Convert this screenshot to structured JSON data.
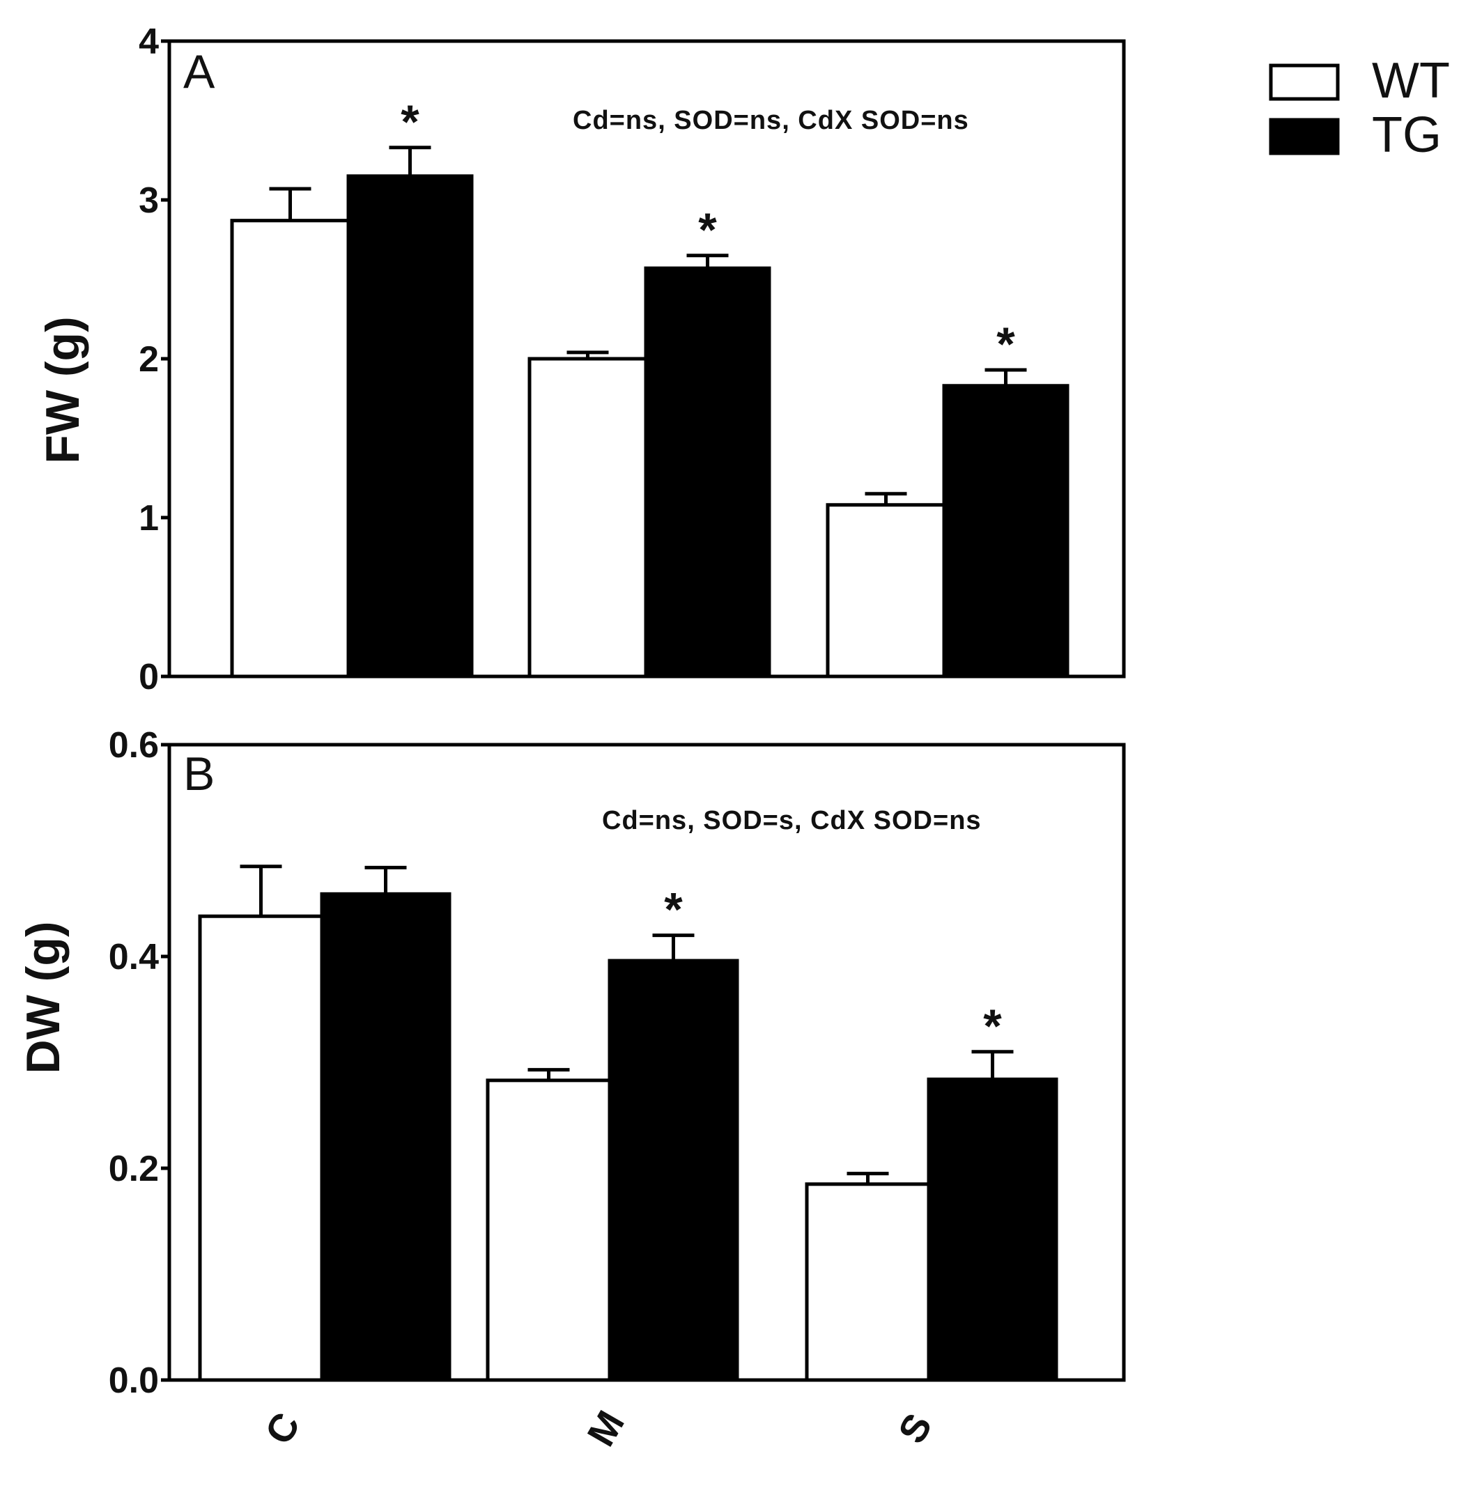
{
  "chart_data": [
    {
      "type": "bar",
      "panel": "A",
      "categories": [
        "C",
        "M",
        "S"
      ],
      "series": [
        {
          "name": "WT",
          "values": [
            2.87,
            2.0,
            1.08
          ],
          "errors": [
            0.2,
            0.04,
            0.07
          ]
        },
        {
          "name": "TG",
          "values": [
            3.15,
            2.57,
            1.83
          ],
          "errors": [
            0.18,
            0.08,
            0.1
          ]
        }
      ],
      "significant": {
        "WT": [
          false,
          false,
          false
        ],
        "TG": [
          true,
          true,
          true
        ]
      },
      "star_label": "*",
      "ylabel": "FW (g)",
      "ylim": [
        0,
        4
      ],
      "yticks": [
        0,
        1,
        2,
        3,
        4
      ],
      "ytick_labels": [
        "0",
        "1",
        "2",
        "3",
        "4"
      ],
      "annotation": "Cd=ns, SOD=ns, CdX SOD=ns"
    },
    {
      "type": "bar",
      "panel": "B",
      "categories": [
        "C",
        "M",
        "S"
      ],
      "series": [
        {
          "name": "WT",
          "values": [
            0.438,
            0.283,
            0.185
          ],
          "errors": [
            0.047,
            0.01,
            0.01
          ]
        },
        {
          "name": "TG",
          "values": [
            0.459,
            0.396,
            0.284
          ],
          "errors": [
            0.025,
            0.024,
            0.026
          ]
        }
      ],
      "significant": {
        "WT": [
          false,
          false,
          false
        ],
        "TG": [
          false,
          true,
          true
        ]
      },
      "star_label": "*",
      "ylabel": "DW (g)",
      "ylim": [
        0,
        0.6
      ],
      "yticks": [
        0,
        0.2,
        0.4,
        0.6
      ],
      "ytick_labels": [
        "0.0",
        "0.2",
        "0.4",
        "0.6"
      ],
      "annotation": "Cd=ns, SOD=s, CdX SOD=ns",
      "xtick_labels": [
        "C",
        "M",
        "S"
      ]
    }
  ],
  "legend": [
    {
      "name": "WT",
      "fill": "#ffffff"
    },
    {
      "name": "TG",
      "fill": "#000000"
    }
  ],
  "colors": {
    "axis": "#000000",
    "wt_fill": "#ffffff",
    "tg_fill": "#000000"
  }
}
